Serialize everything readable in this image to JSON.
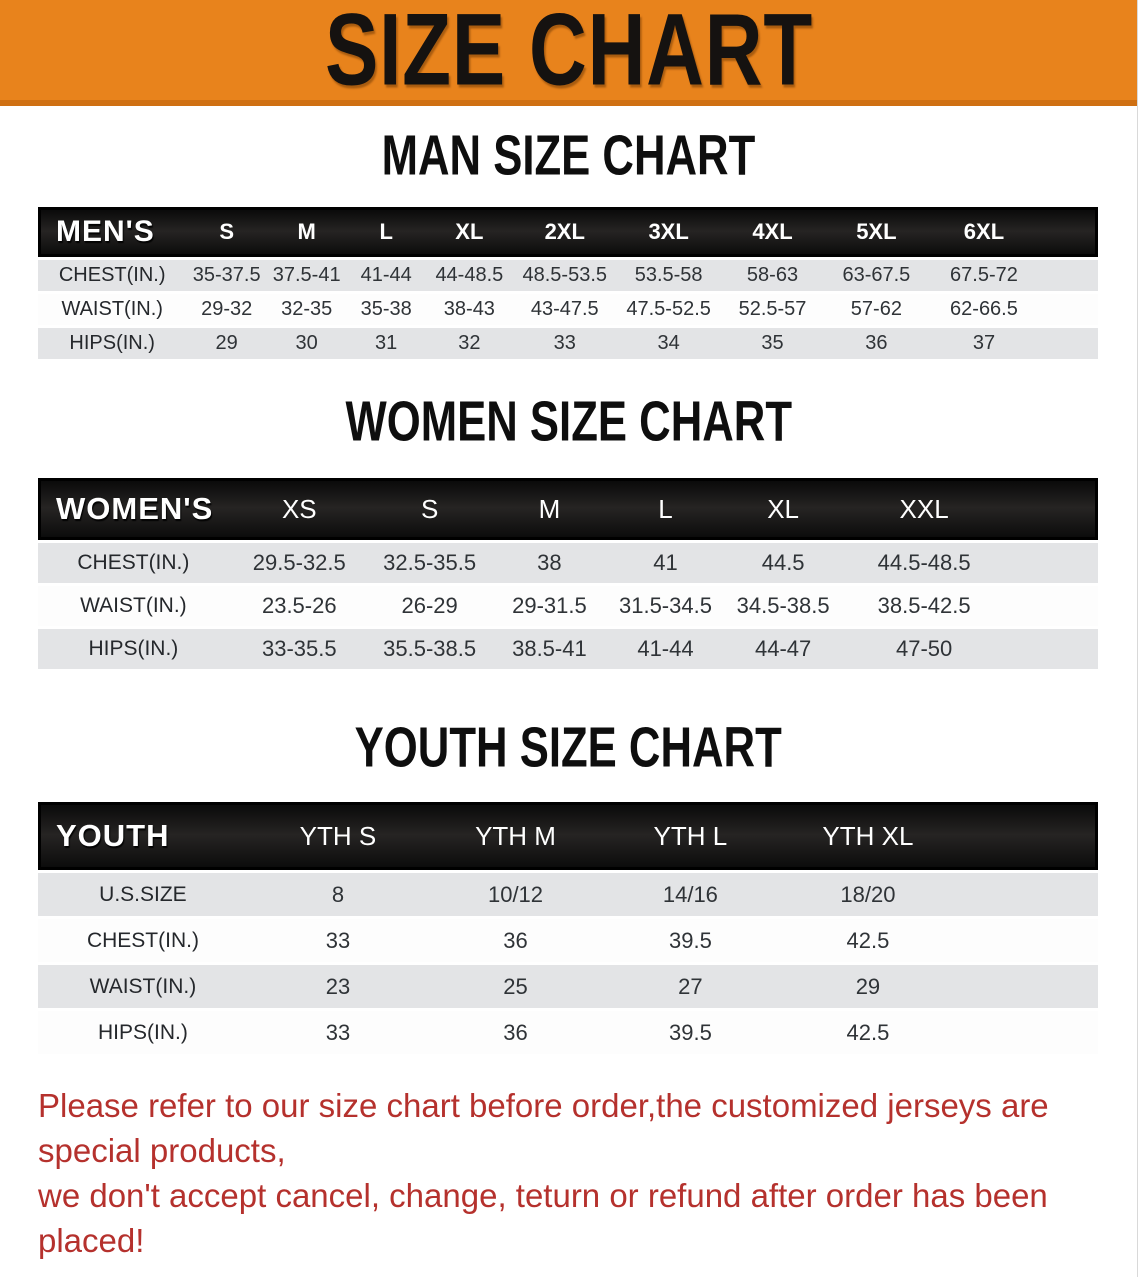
{
  "banner": {
    "title": "SIZE CHART"
  },
  "sections": [
    {
      "heading": "MAN SIZE CHART",
      "corner": "MEN'S",
      "columns": [
        "S",
        "M",
        "L",
        "XL",
        "2XL",
        "3XL",
        "4XL",
        "5XL",
        "6XL"
      ],
      "rows": [
        {
          "label": "CHEST(IN.)",
          "values": [
            "35-37.5",
            "37.5-41",
            "41-44",
            "44-48.5",
            "48.5-53.5",
            "53.5-58",
            "58-63",
            "63-67.5",
            "67.5-72"
          ]
        },
        {
          "label": "WAIST(IN.)",
          "values": [
            "29-32",
            "32-35",
            "35-38",
            "38-43",
            "43-47.5",
            "47.5-52.5",
            "52.5-57",
            "57-62",
            "62-66.5"
          ]
        },
        {
          "label": "HIPS(IN.)",
          "values": [
            "29",
            "30",
            "31",
            "32",
            "33",
            "34",
            "35",
            "36",
            "37"
          ]
        }
      ]
    },
    {
      "heading": "WOMEN SIZE CHART",
      "corner": "WOMEN'S",
      "columns": [
        "XS",
        "S",
        "M",
        "L",
        "XL",
        "XXL"
      ],
      "rows": [
        {
          "label": "CHEST(IN.)",
          "values": [
            "29.5-32.5",
            "32.5-35.5",
            "38",
            "41",
            "44.5",
            "44.5-48.5"
          ]
        },
        {
          "label": "WAIST(IN.)",
          "values": [
            "23.5-26",
            "26-29",
            "29-31.5",
            "31.5-34.5",
            "34.5-38.5",
            "38.5-42.5"
          ]
        },
        {
          "label": "HIPS(IN.)",
          "values": [
            "33-35.5",
            "35.5-38.5",
            "38.5-41",
            "41-44",
            "44-47",
            "47-50"
          ]
        }
      ]
    },
    {
      "heading": "YOUTH SIZE CHART",
      "corner": "YOUTH",
      "columns": [
        "YTH S",
        "YTH M",
        "YTH L",
        "YTH XL"
      ],
      "rows": [
        {
          "label": "U.S.SIZE",
          "values": [
            "8",
            "10/12",
            "14/16",
            "18/20"
          ]
        },
        {
          "label": "CHEST(IN.)",
          "values": [
            "33",
            "36",
            "39.5",
            "42.5"
          ]
        },
        {
          "label": "WAIST(IN.)",
          "values": [
            "23",
            "25",
            "27",
            "29"
          ]
        },
        {
          "label": "HIPS(IN.)",
          "values": [
            "33",
            "36",
            "39.5",
            "42.5"
          ]
        }
      ]
    }
  ],
  "disclaimer": {
    "line1": "Please refer to our size chart before order,the customized jerseys are special products,",
    "line2": "we don't accept cancel, change, teturn or refund after order has been placed!"
  },
  "colors": {
    "banner_orange": "#e8831c",
    "banner_edge": "#cf7013",
    "header_bar_black": "#141414",
    "row_gray": "#e3e4e6",
    "row_white": "#fdfdfd",
    "disclaimer_red": "#b5312d"
  }
}
